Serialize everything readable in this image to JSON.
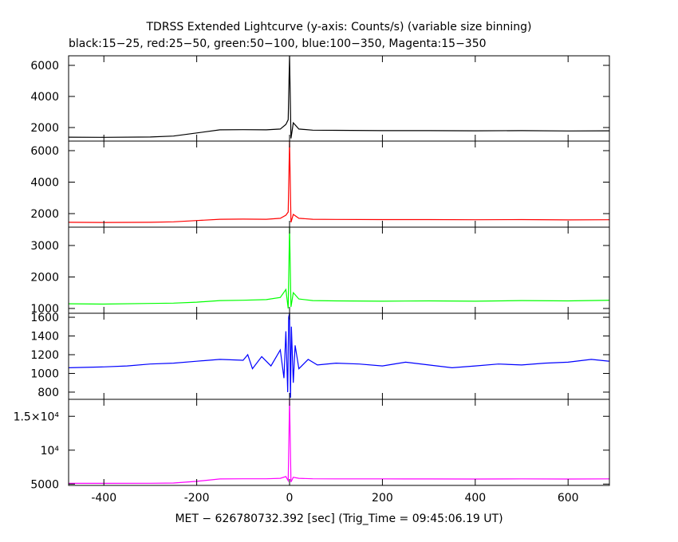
{
  "chart_data": [
    {
      "type": "line",
      "title": "TDRSS Extended Lightcurve (y-axis: Counts/s) (variable size binning)",
      "subtitle": "black:15−25, red:25−50, green:50−100, blue:100−350, Magenta:15−350",
      "xlim": [
        -476,
        689
      ],
      "ylim": [
        1128,
        6615
      ],
      "yticks": [
        2000,
        4000,
        6000
      ],
      "series": [
        {
          "color": "#000000",
          "x": [
            -476,
            -400,
            -300,
            -250,
            -200,
            -150,
            -100,
            -50,
            -20,
            -8,
            -3,
            0,
            3,
            8,
            20,
            50,
            100,
            200,
            300,
            400,
            500,
            600,
            689
          ],
          "values": [
            1380,
            1370,
            1390,
            1450,
            1650,
            1850,
            1860,
            1850,
            1900,
            2200,
            2500,
            6615,
            1300,
            2300,
            1900,
            1830,
            1820,
            1800,
            1800,
            1790,
            1800,
            1780,
            1790
          ]
        }
      ]
    },
    {
      "type": "line",
      "xlim": [
        -476,
        689
      ],
      "ylim": [
        1139,
        6608
      ],
      "yticks": [
        2000,
        4000,
        6000
      ],
      "series": [
        {
          "color": "#ff0000",
          "x": [
            -476,
            -400,
            -300,
            -250,
            -200,
            -150,
            -100,
            -50,
            -20,
            -8,
            -3,
            0,
            3,
            8,
            20,
            50,
            100,
            200,
            300,
            400,
            500,
            600,
            689
          ],
          "values": [
            1450,
            1440,
            1450,
            1480,
            1560,
            1640,
            1650,
            1640,
            1700,
            1900,
            2100,
            6608,
            1450,
            1950,
            1700,
            1640,
            1630,
            1620,
            1620,
            1610,
            1620,
            1600,
            1610
          ]
        }
      ]
    },
    {
      "type": "line",
      "xlim": [
        -476,
        689
      ],
      "ylim": [
        848,
        3582
      ],
      "yticks": [
        1000,
        2000,
        3000
      ],
      "series": [
        {
          "color": "#00ff00",
          "x": [
            -476,
            -400,
            -300,
            -250,
            -200,
            -150,
            -100,
            -50,
            -20,
            -8,
            -3,
            0,
            3,
            8,
            20,
            50,
            100,
            200,
            300,
            400,
            500,
            600,
            689
          ],
          "values": [
            1150,
            1140,
            1160,
            1170,
            1200,
            1250,
            1260,
            1280,
            1350,
            1600,
            1000,
            3582,
            1050,
            1500,
            1300,
            1250,
            1240,
            1230,
            1240,
            1230,
            1250,
            1240,
            1260
          ]
        }
      ]
    },
    {
      "type": "line",
      "xlim": [
        -476,
        689
      ],
      "ylim": [
        723,
        1643
      ],
      "yticks": [
        800,
        1000,
        1200,
        1400,
        1600
      ],
      "series": [
        {
          "color": "#0000ff",
          "x": [
            -476,
            -400,
            -350,
            -300,
            -250,
            -200,
            -150,
            -100,
            -90,
            -80,
            -60,
            -40,
            -20,
            -12,
            -8,
            -4,
            -2,
            0,
            2,
            4,
            8,
            12,
            20,
            40,
            60,
            100,
            150,
            200,
            250,
            300,
            350,
            400,
            450,
            500,
            550,
            600,
            650,
            689
          ],
          "values": [
            1060,
            1070,
            1080,
            1100,
            1110,
            1130,
            1150,
            1140,
            1200,
            1050,
            1180,
            1080,
            1250,
            950,
            1450,
            800,
            1600,
            1643,
            740,
            1500,
            900,
            1300,
            1050,
            1150,
            1090,
            1110,
            1100,
            1080,
            1120,
            1090,
            1060,
            1080,
            1100,
            1090,
            1110,
            1120,
            1150,
            1130
          ]
        }
      ]
    },
    {
      "type": "line",
      "xlim": [
        -476,
        689
      ],
      "ylim": [
        4800,
        17500
      ],
      "yticks": [
        5000,
        {
          "value": 10000,
          "label": "10⁴"
        },
        {
          "value": 15000,
          "label": "1.5×10⁴"
        }
      ],
      "xticks": [
        -400,
        -200,
        0,
        200,
        400,
        600
      ],
      "xlabel": "MET − 626780732.392 [sec] (Trig_Time = 09:45:06.19 UT)",
      "series": [
        {
          "color": "#ff00ff",
          "x": [
            -476,
            -400,
            -300,
            -250,
            -200,
            -150,
            -100,
            -50,
            -20,
            -8,
            -3,
            0,
            3,
            8,
            20,
            50,
            100,
            200,
            300,
            400,
            500,
            600,
            689
          ],
          "values": [
            5100,
            5100,
            5120,
            5150,
            5400,
            5750,
            5780,
            5780,
            5850,
            6100,
            5500,
            17500,
            5300,
            6000,
            5850,
            5780,
            5770,
            5760,
            5750,
            5740,
            5760,
            5740,
            5760
          ]
        }
      ]
    }
  ]
}
